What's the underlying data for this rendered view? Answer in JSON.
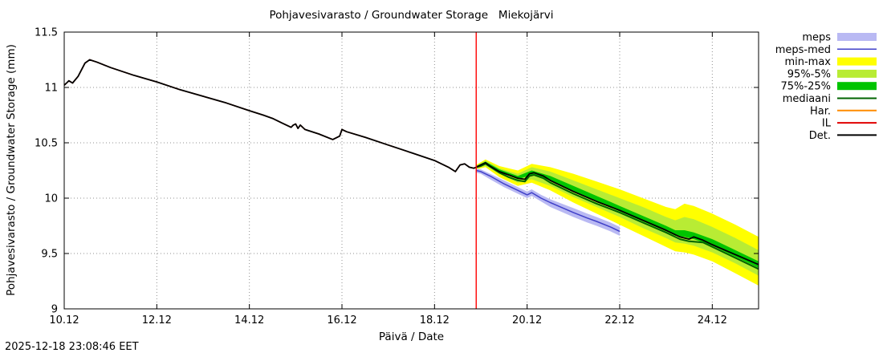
{
  "page": {
    "timestamp": "2025-12-18 23:08:46 EET"
  },
  "chart_data": {
    "type": "line",
    "title": "Pohjavesivarasto / Groundwater Storage   Miekojärvi",
    "xlabel": "Päivä / Date",
    "ylabel": "Pohjavesivarasto / Groundwater Storage (mm)",
    "xlim": [
      10,
      25
    ],
    "ylim": [
      9,
      11.5
    ],
    "grid": true,
    "grid_color": "#909090",
    "forecast_start_x": 18.9,
    "forecast_line_color": "#ff0000",
    "x_ticks": [
      {
        "v": 10,
        "label": "10.12"
      },
      {
        "v": 12,
        "label": "12.12"
      },
      {
        "v": 14,
        "label": "14.12"
      },
      {
        "v": 16,
        "label": "16.12"
      },
      {
        "v": 18,
        "label": "18.12"
      },
      {
        "v": 20,
        "label": "20.12"
      },
      {
        "v": 22,
        "label": "22.12"
      },
      {
        "v": 24,
        "label": "24.12"
      }
    ],
    "y_ticks": [
      {
        "v": 9,
        "label": "9"
      },
      {
        "v": 9.5,
        "label": "9.5"
      },
      {
        "v": 10,
        "label": "10"
      },
      {
        "v": 10.5,
        "label": "10.5"
      },
      {
        "v": 11,
        "label": "11"
      },
      {
        "v": 11.5,
        "label": "11.5"
      }
    ],
    "bands": [
      {
        "name": "min-max",
        "color": "#ffff00",
        "x": [
          18.9,
          19.1,
          19.4,
          19.8,
          20.1,
          20.5,
          21.0,
          21.5,
          22.0,
          22.5,
          23.0,
          23.2,
          23.4,
          23.6,
          24.0,
          24.5,
          25.0
        ],
        "hi": [
          10.3,
          10.35,
          10.29,
          10.25,
          10.31,
          10.28,
          10.22,
          10.15,
          10.08,
          10.0,
          9.92,
          9.9,
          9.95,
          9.93,
          9.86,
          9.76,
          9.65
        ],
        "lo": [
          10.26,
          10.28,
          10.19,
          10.11,
          10.14,
          10.07,
          9.96,
          9.86,
          9.76,
          9.66,
          9.56,
          9.52,
          9.51,
          9.49,
          9.43,
          9.32,
          9.21
        ]
      },
      {
        "name": "p95-p5",
        "color": "#b8ec34",
        "x": [
          18.9,
          19.1,
          19.4,
          19.8,
          20.1,
          20.5,
          21.0,
          21.5,
          22.0,
          22.5,
          23.0,
          23.2,
          23.4,
          23.6,
          24.0,
          24.5,
          25.0
        ],
        "hi": [
          10.29,
          10.34,
          10.27,
          10.22,
          10.28,
          10.24,
          10.16,
          10.08,
          10.0,
          9.92,
          9.83,
          9.8,
          9.83,
          9.81,
          9.74,
          9.64,
          9.53
        ],
        "lo": [
          10.27,
          10.29,
          10.22,
          10.14,
          10.17,
          10.11,
          10.01,
          9.92,
          9.83,
          9.73,
          9.64,
          9.6,
          9.59,
          9.57,
          9.51,
          9.41,
          9.3
        ]
      },
      {
        "name": "p75-p25",
        "color": "#00c400",
        "x": [
          18.9,
          19.1,
          19.4,
          19.8,
          20.1,
          20.5,
          21.0,
          21.5,
          22.0,
          22.5,
          23.0,
          23.2,
          23.4,
          23.6,
          24.0,
          24.5,
          25.0
        ],
        "hi": [
          10.29,
          10.33,
          10.26,
          10.2,
          10.25,
          10.2,
          10.11,
          10.02,
          9.93,
          9.84,
          9.75,
          9.71,
          9.71,
          9.69,
          9.63,
          9.53,
          9.43
        ],
        "lo": [
          10.28,
          10.31,
          10.24,
          10.17,
          10.21,
          10.16,
          10.06,
          9.97,
          9.88,
          9.79,
          9.7,
          9.66,
          9.65,
          9.63,
          9.57,
          9.47,
          9.37
        ]
      },
      {
        "name": "meps",
        "color": "#b9b9f3",
        "x": [
          18.9,
          19.0,
          19.2,
          19.5,
          19.8,
          20.0,
          20.1,
          20.3,
          20.5,
          21.0,
          21.3,
          21.5,
          21.8,
          22.0
        ],
        "hi": [
          10.27,
          10.26,
          10.22,
          10.16,
          10.1,
          10.06,
          10.08,
          10.03,
          9.99,
          9.91,
          9.86,
          9.83,
          9.78,
          9.74
        ],
        "lo": [
          10.23,
          10.22,
          10.17,
          10.1,
          10.04,
          10.0,
          10.02,
          9.97,
          9.92,
          9.83,
          9.78,
          9.75,
          9.7,
          9.66
        ]
      }
    ],
    "series": [
      {
        "name": "har",
        "color": "#ff8c00",
        "width": 1.5,
        "x": [
          10.0,
          10.05,
          10.1,
          10.18,
          10.3,
          10.45,
          10.55,
          10.7,
          11.0,
          11.5,
          12.0,
          12.5,
          13.0,
          13.5,
          14.0,
          14.3,
          14.5,
          14.7,
          14.8,
          14.9,
          14.95,
          15.0,
          15.05,
          15.1,
          15.2,
          15.5,
          15.8,
          15.95,
          16.0,
          16.1,
          16.5,
          17.0,
          17.5,
          18.0,
          18.3,
          18.45,
          18.55,
          18.65,
          18.75,
          18.85,
          18.9
        ],
        "y": [
          11.02,
          11.04,
          11.06,
          11.04,
          11.1,
          11.22,
          11.25,
          11.23,
          11.18,
          11.11,
          11.05,
          10.98,
          10.92,
          10.86,
          10.79,
          10.75,
          10.72,
          10.68,
          10.66,
          10.64,
          10.66,
          10.67,
          10.63,
          10.66,
          10.62,
          10.58,
          10.53,
          10.56,
          10.62,
          10.6,
          10.55,
          10.48,
          10.41,
          10.34,
          10.28,
          10.24,
          10.3,
          10.31,
          10.28,
          10.27,
          10.28
        ]
      },
      {
        "name": "il",
        "color": "#e00000",
        "width": 1.5,
        "x": [
          10.0,
          10.05,
          10.1,
          10.18,
          10.3,
          10.45,
          10.55,
          10.7,
          11.0,
          11.5,
          12.0,
          12.5,
          13.0,
          13.5,
          14.0,
          14.3,
          14.5,
          14.7,
          14.8,
          14.9,
          14.95,
          15.0,
          15.05,
          15.1,
          15.2,
          15.5,
          15.8,
          15.95,
          16.0,
          16.1,
          16.5,
          17.0,
          17.5,
          18.0,
          18.3,
          18.45,
          18.55,
          18.65,
          18.75,
          18.85,
          18.9
        ],
        "y": [
          11.02,
          11.04,
          11.06,
          11.04,
          11.1,
          11.22,
          11.25,
          11.23,
          11.18,
          11.11,
          11.05,
          10.98,
          10.92,
          10.86,
          10.79,
          10.75,
          10.72,
          10.68,
          10.66,
          10.64,
          10.66,
          10.67,
          10.63,
          10.66,
          10.62,
          10.58,
          10.53,
          10.56,
          10.62,
          10.6,
          10.55,
          10.48,
          10.41,
          10.34,
          10.28,
          10.24,
          10.3,
          10.31,
          10.28,
          10.27,
          10.28
        ]
      },
      {
        "name": "meps-med",
        "color": "#4040c8",
        "width": 1.5,
        "x": [
          18.9,
          19.0,
          19.2,
          19.5,
          19.8,
          20.0,
          20.1,
          20.3,
          20.5,
          21.0,
          21.3,
          21.5,
          21.8,
          22.0
        ],
        "y": [
          10.25,
          10.24,
          10.2,
          10.13,
          10.07,
          10.03,
          10.05,
          10.0,
          9.96,
          9.87,
          9.82,
          9.79,
          9.74,
          9.7
        ]
      },
      {
        "name": "mediaani",
        "color": "#006400",
        "width": 2,
        "x": [
          18.9,
          19.0,
          19.1,
          19.25,
          19.4,
          19.6,
          19.8,
          19.95,
          20.05,
          20.15,
          20.35,
          20.5,
          21.0,
          21.5,
          22.0,
          22.5,
          23.0,
          23.3,
          23.5,
          23.8,
          24.0,
          24.5,
          25.0
        ],
        "y": [
          10.28,
          10.29,
          10.31,
          10.27,
          10.23,
          10.19,
          10.16,
          10.15,
          10.2,
          10.21,
          10.18,
          10.14,
          10.04,
          9.95,
          9.87,
          9.78,
          9.69,
          9.63,
          9.61,
          9.6,
          9.56,
          9.46,
          9.36
        ]
      },
      {
        "name": "det",
        "color": "#000000",
        "width": 1.8,
        "x": [
          10.0,
          10.05,
          10.1,
          10.18,
          10.3,
          10.45,
          10.55,
          10.7,
          11.0,
          11.5,
          12.0,
          12.5,
          13.0,
          13.5,
          14.0,
          14.3,
          14.5,
          14.7,
          14.8,
          14.9,
          14.95,
          15.0,
          15.05,
          15.1,
          15.2,
          15.5,
          15.8,
          15.95,
          16.0,
          16.1,
          16.5,
          17.0,
          17.5,
          18.0,
          18.3,
          18.45,
          18.55,
          18.65,
          18.75,
          18.85,
          18.9,
          19.0,
          19.1,
          19.2,
          19.4,
          19.6,
          19.8,
          19.95,
          20.05,
          20.15,
          20.35,
          20.5,
          21.0,
          21.5,
          22.0,
          22.5,
          23.0,
          23.3,
          23.5,
          23.6,
          23.8,
          24.0,
          24.5,
          25.0
        ],
        "y": [
          11.02,
          11.04,
          11.06,
          11.04,
          11.1,
          11.22,
          11.25,
          11.23,
          11.18,
          11.11,
          11.05,
          10.98,
          10.92,
          10.86,
          10.79,
          10.75,
          10.72,
          10.68,
          10.66,
          10.64,
          10.66,
          10.67,
          10.63,
          10.66,
          10.62,
          10.58,
          10.53,
          10.56,
          10.62,
          10.6,
          10.55,
          10.48,
          10.41,
          10.34,
          10.28,
          10.24,
          10.3,
          10.31,
          10.28,
          10.27,
          10.28,
          10.3,
          10.32,
          10.29,
          10.24,
          10.21,
          10.18,
          10.17,
          10.22,
          10.23,
          10.2,
          10.16,
          10.06,
          9.97,
          9.89,
          9.8,
          9.71,
          9.65,
          9.63,
          9.65,
          9.62,
          9.58,
          9.49,
          9.4
        ]
      }
    ],
    "legend": [
      {
        "name": "meps",
        "label": "meps",
        "swatch": "band",
        "color": "#b9b9f3"
      },
      {
        "name": "meps-med",
        "label": "meps-med",
        "swatch": "line",
        "color": "#4040c8",
        "width": 1.5
      },
      {
        "name": "min-max",
        "label": "min-max",
        "swatch": "band",
        "color": "#ffff00"
      },
      {
        "name": "p95-p5",
        "label": "95%-5%",
        "swatch": "band",
        "color": "#b8ec34"
      },
      {
        "name": "p75-p25",
        "label": "75%-25%",
        "swatch": "band",
        "color": "#00c400"
      },
      {
        "name": "mediaani",
        "label": "mediaani",
        "swatch": "line",
        "color": "#006400",
        "width": 2
      },
      {
        "name": "har",
        "label": "Har.",
        "swatch": "line",
        "color": "#ff8c00",
        "width": 2
      },
      {
        "name": "il",
        "label": "IL",
        "swatch": "line",
        "color": "#e00000",
        "width": 2
      },
      {
        "name": "det",
        "label": "Det.",
        "swatch": "line",
        "color": "#000000",
        "width": 2
      }
    ]
  }
}
